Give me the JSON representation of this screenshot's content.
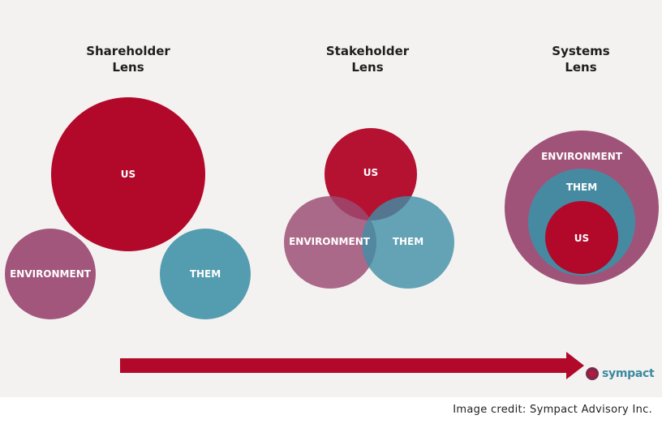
{
  "colors": {
    "us": "#b2082a",
    "them": "#3e8fa6",
    "environment": "#9b4a72",
    "arrow": "#b2082a",
    "background": "#f4f2f1"
  },
  "lenses": {
    "shareholder": {
      "title": "Shareholder\nLens",
      "us": "US",
      "environment": "ENVIRONMENT",
      "them": "THEM"
    },
    "stakeholder": {
      "title": "Stakeholder\nLens",
      "us": "US",
      "environment": "ENVIRONMENT",
      "them": "THEM"
    },
    "systems": {
      "title": "Systems\nLens",
      "environment": "ENVIRONMENT",
      "them": "THEM",
      "us": "US"
    }
  },
  "logo": {
    "text": "sympact"
  },
  "credit": "Image credit: Sympact Advisory Inc."
}
